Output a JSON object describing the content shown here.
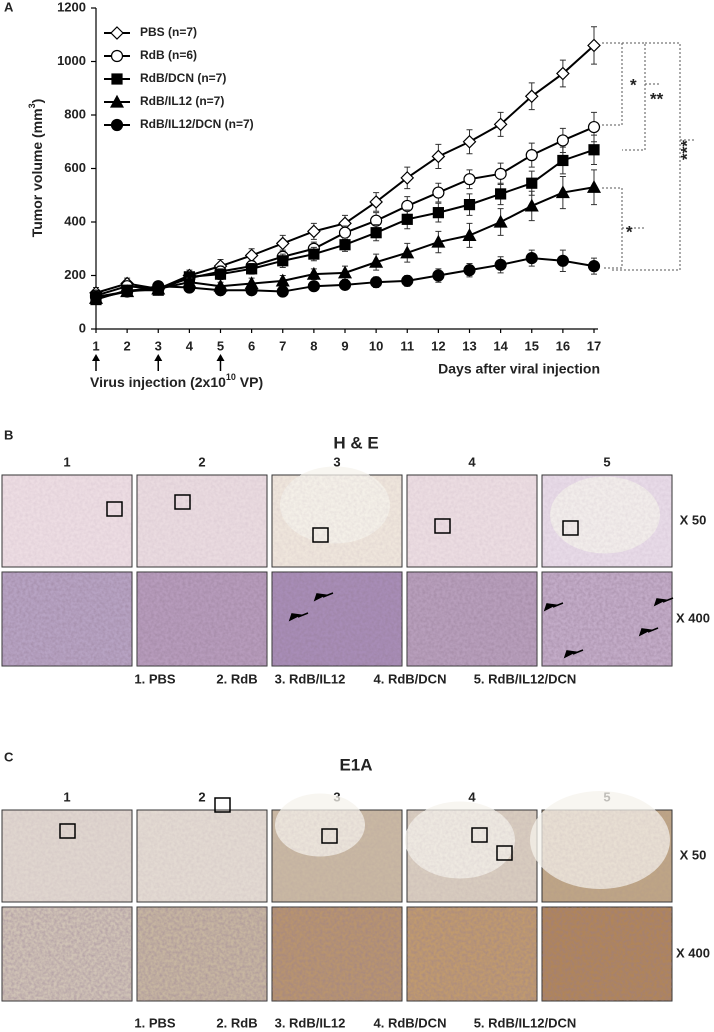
{
  "chart_data": {
    "type": "line",
    "panel_label": "A",
    "y_label": [
      "Tumor volume (mm",
      "3",
      ")"
    ],
    "x_label": "Days after viral injection",
    "injection_label": [
      "Virus injection (2x10",
      "10",
      " VP)"
    ],
    "x": [
      1,
      2,
      3,
      4,
      5,
      6,
      7,
      8,
      9,
      10,
      11,
      12,
      13,
      14,
      15,
      16,
      17
    ],
    "xlim": [
      1,
      17
    ],
    "xticks": [
      1,
      2,
      3,
      4,
      5,
      6,
      7,
      8,
      9,
      10,
      11,
      12,
      13,
      14,
      15,
      16,
      17
    ],
    "injection_days": [
      1,
      3,
      5
    ],
    "ylim": [
      0,
      1200
    ],
    "yticks": [
      0,
      200,
      400,
      600,
      800,
      1000,
      1200
    ],
    "legend": "upper left",
    "series": [
      {
        "name": "PBS (n=7)",
        "marker": "diamond",
        "color": "#000000",
        "filled": false,
        "values": [
          135,
          170,
          150,
          200,
          235,
          275,
          320,
          365,
          395,
          475,
          565,
          645,
          700,
          765,
          870,
          955,
          1060
        ],
        "errors": [
          20,
          20,
          15,
          20,
          25,
          25,
          30,
          30,
          30,
          35,
          40,
          45,
          45,
          45,
          50,
          50,
          70
        ]
      },
      {
        "name": "RdB (n=6)",
        "marker": "circle",
        "color": "#000000",
        "filled": false,
        "values": [
          125,
          160,
          150,
          190,
          215,
          235,
          270,
          300,
          360,
          405,
          460,
          510,
          560,
          580,
          650,
          705,
          755
        ],
        "errors": [
          15,
          15,
          15,
          15,
          20,
          20,
          25,
          25,
          25,
          30,
          35,
          35,
          35,
          40,
          45,
          45,
          55
        ]
      },
      {
        "name": "RdB/DCN (n=7)",
        "marker": "square",
        "color": "#000000",
        "filled": true,
        "values": [
          110,
          145,
          145,
          195,
          205,
          225,
          255,
          280,
          315,
          360,
          410,
          435,
          465,
          505,
          545,
          630,
          670
        ],
        "errors": [
          15,
          15,
          15,
          15,
          20,
          20,
          25,
          25,
          25,
          30,
          35,
          35,
          40,
          40,
          45,
          50,
          55
        ]
      },
      {
        "name": "RdB/IL12 (n=7)",
        "marker": "triangle",
        "color": "#000000",
        "filled": true,
        "values": [
          115,
          140,
          150,
          175,
          160,
          170,
          180,
          205,
          210,
          250,
          285,
          325,
          350,
          400,
          460,
          510,
          530
        ],
        "errors": [
          15,
          15,
          15,
          15,
          15,
          20,
          20,
          20,
          25,
          30,
          35,
          40,
          45,
          50,
          55,
          60,
          65
        ]
      },
      {
        "name": "RdB/IL12/DCN (n=7)",
        "marker": "circle",
        "color": "#000000",
        "filled": true,
        "values": [
          120,
          140,
          160,
          155,
          145,
          145,
          140,
          160,
          165,
          175,
          180,
          200,
          220,
          240,
          265,
          255,
          235
        ],
        "errors": [
          15,
          15,
          15,
          15,
          15,
          15,
          15,
          15,
          15,
          20,
          20,
          25,
          25,
          30,
          30,
          40,
          30
        ]
      }
    ],
    "annotations": [
      "*",
      "**",
      "***",
      "*"
    ]
  },
  "panel_b": {
    "label": "B",
    "title": "H & E",
    "columns": [
      "1",
      "2",
      "3",
      "4",
      "5"
    ],
    "magnifications": [
      "X 50",
      "X 400"
    ],
    "legend": [
      "1. PBS",
      "2. RdB",
      "3. RdB/IL12",
      "4. RdB/DCN",
      "5. RdB/IL12/DCN"
    ]
  },
  "panel_c": {
    "label": "C",
    "title": "E1A",
    "columns": [
      "1",
      "2",
      "3",
      "4",
      "5"
    ],
    "magnifications": [
      "X 50",
      "X 400"
    ],
    "legend": [
      "1. PBS",
      "2. RdB",
      "3. RdB/IL12",
      "4. RdB/DCN",
      "5. RdB/IL12/DCN"
    ]
  }
}
